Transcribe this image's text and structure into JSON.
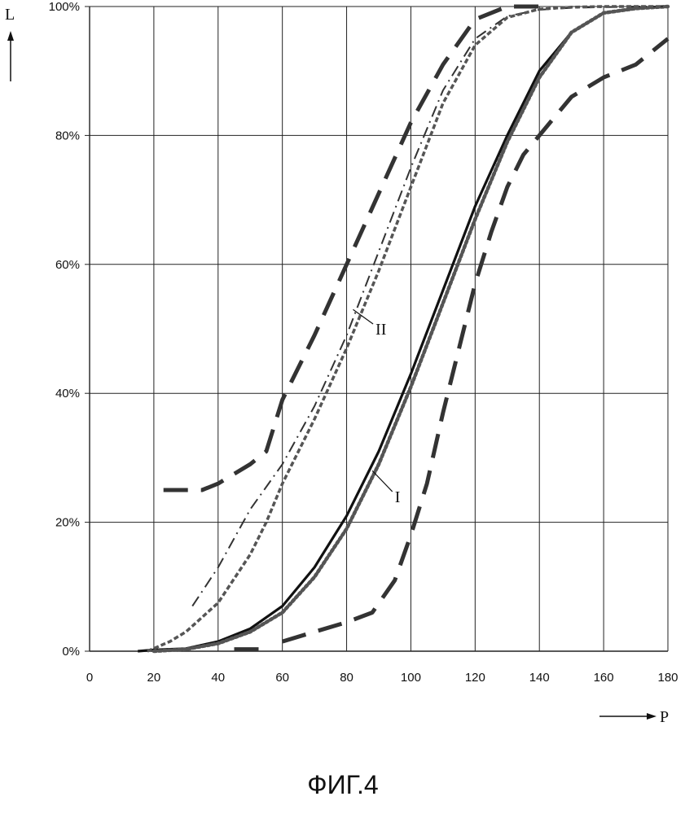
{
  "caption": "ФИГ.4",
  "chart_data": {
    "type": "line",
    "xlabel": "P",
    "ylabel": "L",
    "xlim": [
      0,
      180
    ],
    "ylim": [
      0,
      100
    ],
    "x_ticks": [
      "0",
      "20",
      "40",
      "60",
      "80",
      "100",
      "120",
      "140",
      "160",
      "180"
    ],
    "y_ticks": [
      "0%",
      "20%",
      "40%",
      "60%",
      "80%",
      "100%"
    ],
    "grid": true,
    "annotations": [
      {
        "text": "II",
        "x": 89,
        "y": 50,
        "target_x": 82,
        "target_y": 53
      },
      {
        "text": "I",
        "x": 95,
        "y": 24,
        "target_x": 88,
        "target_y": 28
      }
    ],
    "series": [
      {
        "style": "solid",
        "x": [
          15,
          20,
          30,
          40,
          50,
          60,
          70,
          80,
          90,
          100,
          110,
          120,
          130,
          140,
          150,
          160,
          170,
          180
        ],
        "y": [
          0,
          0.2,
          0.4,
          1.5,
          3.5,
          7,
          13,
          21,
          31,
          43,
          56,
          69,
          80,
          90,
          96,
          99,
          99.7,
          100
        ]
      },
      {
        "style": "thick-dotted",
        "x": [
          20,
          30,
          40,
          50,
          60,
          70,
          80,
          90,
          100,
          110,
          120,
          130,
          140,
          150,
          160,
          170,
          180
        ],
        "y": [
          0,
          0.3,
          1.2,
          3,
          6,
          11.5,
          19,
          29,
          41,
          54,
          67,
          79,
          89,
          96,
          99,
          99.7,
          100
        ]
      },
      {
        "style": "long-dash",
        "x": [
          45,
          53,
          null,
          60,
          70,
          80,
          88,
          95,
          100,
          105,
          110,
          115,
          120,
          125,
          130,
          135,
          140,
          145,
          150,
          160,
          170,
          180
        ],
        "y": [
          0.3,
          0.3,
          null,
          1.5,
          3,
          4.5,
          6,
          11,
          18,
          26,
          37,
          47,
          57,
          65,
          72,
          77,
          80,
          83,
          86,
          89,
          91,
          95
        ]
      },
      {
        "style": "dash-dot",
        "x": [
          32,
          40,
          50,
          60,
          70,
          80,
          90,
          100,
          110,
          120,
          130,
          140,
          150,
          160,
          170,
          180
        ],
        "y": [
          7,
          13,
          22,
          29,
          38,
          49,
          62,
          75,
          87,
          95,
          98.5,
          99.5,
          99.8,
          99.9,
          100,
          100
        ]
      },
      {
        "style": "short-dash",
        "x": [
          18,
          25,
          30,
          40,
          50,
          55,
          60,
          70,
          80,
          90,
          100,
          110,
          120,
          130,
          140,
          150,
          160,
          180
        ],
        "y": [
          0,
          1.5,
          3,
          7.5,
          15,
          20,
          26,
          36,
          47,
          59,
          72,
          85,
          94,
          98.3,
          99.6,
          99.9,
          100,
          100
        ]
      },
      {
        "style": "long-dash",
        "x": [
          23,
          35,
          40,
          45,
          50,
          55,
          60,
          70,
          80,
          90,
          100,
          110,
          120,
          130,
          140
        ],
        "y": [
          25,
          25,
          26,
          27.5,
          29,
          31,
          39,
          49,
          60,
          71,
          82,
          91,
          98,
          100,
          100
        ]
      }
    ]
  }
}
